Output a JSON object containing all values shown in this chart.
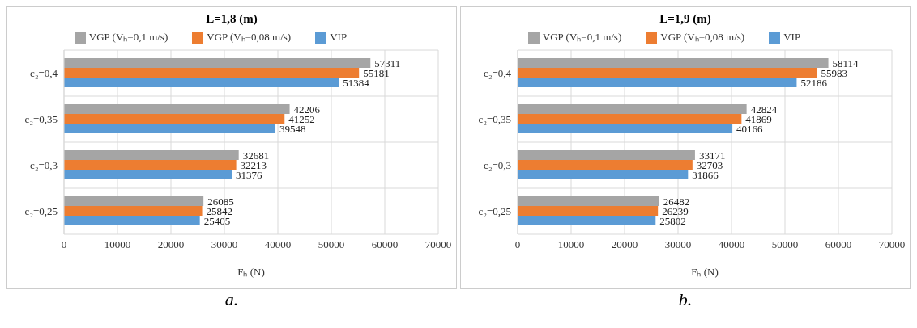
{
  "chart_data": [
    {
      "type": "bar",
      "orientation": "horizontal",
      "title": "L=1,8 (m)",
      "xlabel": "Fₕ (N)",
      "categories": [
        "c₂=0,4",
        "c₂=0,35",
        "c₂=0,3",
        "c₂=0,25"
      ],
      "series": [
        {
          "name": "VGP (Vₕ=0,1 m/s)",
          "color": "#a5a5a5",
          "values": [
            57311,
            42206,
            32681,
            26085
          ]
        },
        {
          "name": "VGP (Vₕ=0,08 m/s)",
          "color": "#ed7d31",
          "values": [
            55181,
            41252,
            32213,
            25842
          ]
        },
        {
          "name": "VIP",
          "color": "#5b9bd5",
          "values": [
            51384,
            39548,
            31376,
            25405
          ]
        }
      ],
      "xlim": [
        0,
        70000
      ],
      "xticks": [
        0,
        10000,
        20000,
        30000,
        40000,
        50000,
        60000,
        70000
      ],
      "grid": true,
      "legend": "top",
      "data_labels": true,
      "annotations": [
        "a."
      ]
    },
    {
      "type": "bar",
      "orientation": "horizontal",
      "title": "L=1,9 (m)",
      "xlabel": "Fₕ (N)",
      "categories": [
        "c₂=0,4",
        "c₂=0,35",
        "c₂=0,3",
        "c₂=0,25"
      ],
      "series": [
        {
          "name": "VGP (Vₕ=0,1 m/s)",
          "color": "#a5a5a5",
          "values": [
            58114,
            42824,
            33171,
            26482
          ]
        },
        {
          "name": "VGP (Vₕ=0,08 m/s)",
          "color": "#ed7d31",
          "values": [
            55983,
            41869,
            32703,
            26239
          ]
        },
        {
          "name": "VIP",
          "color": "#5b9bd5",
          "values": [
            52186,
            40166,
            31866,
            25802
          ]
        }
      ],
      "xlim": [
        0,
        70000
      ],
      "xticks": [
        0,
        10000,
        20000,
        30000,
        40000,
        50000,
        60000,
        70000
      ],
      "grid": true,
      "legend": "top",
      "data_labels": true,
      "annotations": [
        "b."
      ]
    }
  ]
}
